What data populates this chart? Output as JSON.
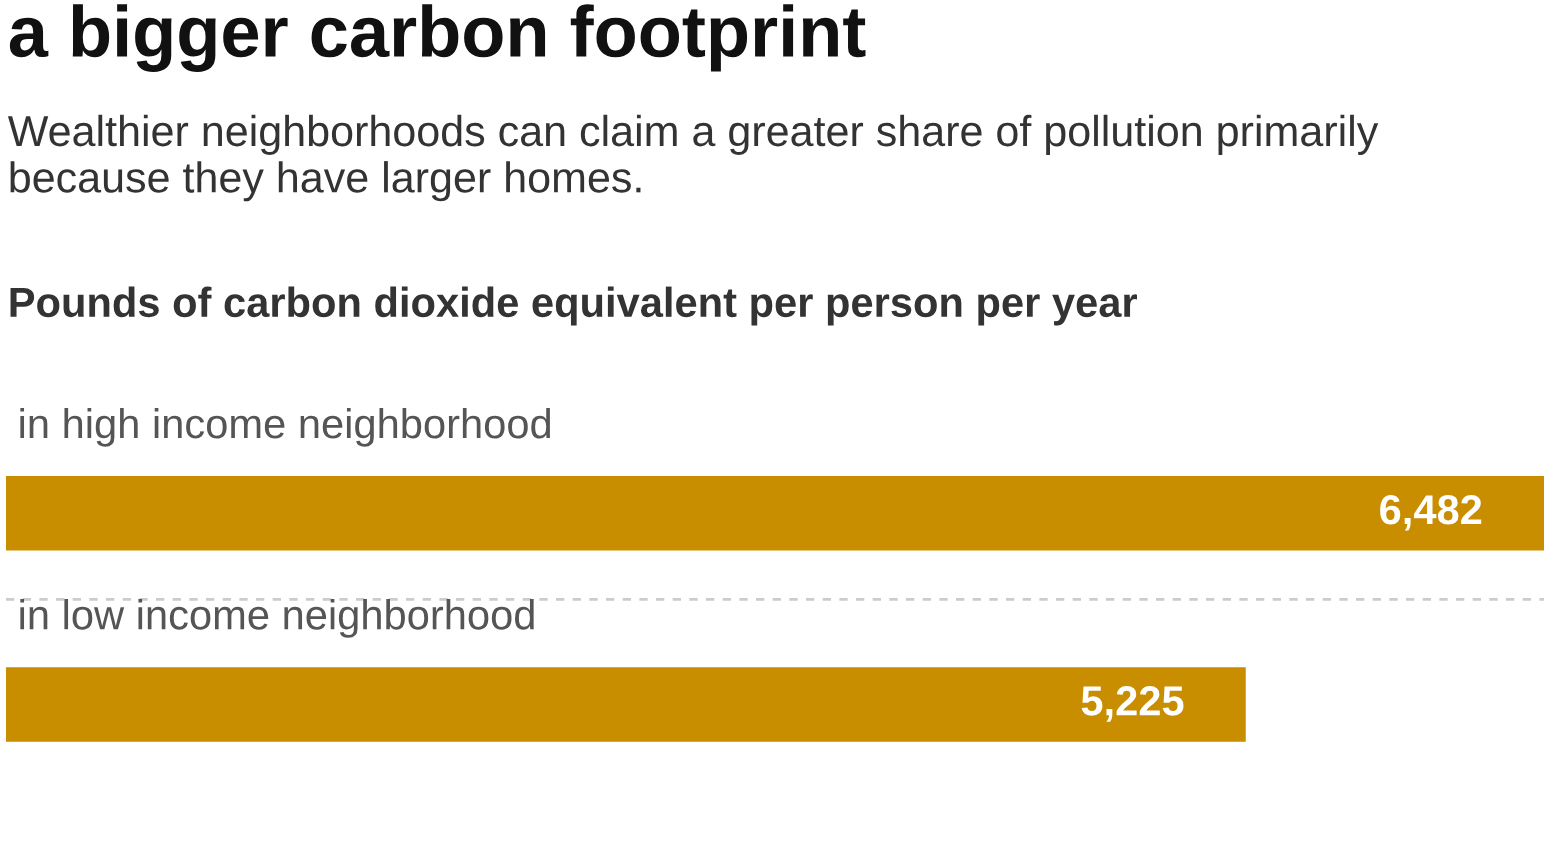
{
  "chart_data": {
    "type": "bar",
    "orientation": "horizontal",
    "title": "a bigger carbon footprint",
    "subtitle": "Wealthier neighborhoods can claim a greater share of pollution primarily because they have larger homes.",
    "xlabel": "Pounds of carbon dioxide equivalent per person per year",
    "categories": [
      "in high income neighborhood",
      "in low income neighborhood"
    ],
    "values": [
      6482,
      5225
    ],
    "value_labels": [
      "6,482",
      "5,225"
    ],
    "color": "#c98d00"
  }
}
